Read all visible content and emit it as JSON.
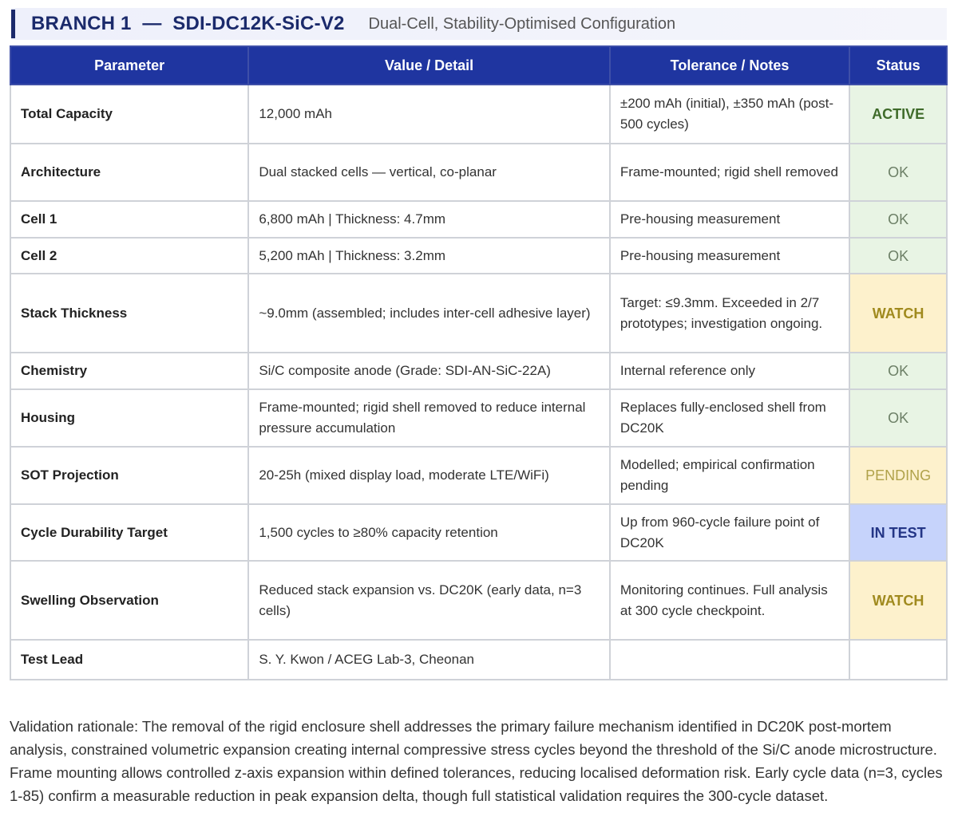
{
  "banner": {
    "title": "BRANCH 1  —  SDI-DC12K-SiC-V2",
    "subtitle": "Dual-Cell, Stability-Optimised Configuration"
  },
  "table": {
    "headers": [
      "Parameter",
      "Value / Detail",
      "Tolerance / Notes",
      "Status"
    ],
    "rows": [
      {
        "param": "Total Capacity",
        "value": "12,000 mAh",
        "notes": "±200 mAh (initial), ±350 mAh (post-500 cycles)",
        "status": "ACTIVE",
        "cls": "active",
        "h": 74
      },
      {
        "param": "Architecture",
        "value": "Dual stacked cells — vertical, co-planar",
        "notes": "Frame-mounted; rigid shell removed",
        "status": "OK",
        "cls": "ok",
        "h": 72
      },
      {
        "param": "Cell 1",
        "value": "6,800 mAh | Thickness: 4.7mm",
        "notes": "Pre-housing measurement",
        "status": "OK",
        "cls": "ok",
        "h": 46
      },
      {
        "param": "Cell 2",
        "value": "5,200 mAh | Thickness: 3.2mm",
        "notes": "Pre-housing measurement",
        "status": "OK",
        "cls": "ok",
        "h": 45
      },
      {
        "param": "Stack Thickness",
        "value": "~9.0mm (assembled; includes inter-cell adhesive layer)",
        "notes": "Target: ≤9.3mm. Exceeded in 2/7 prototypes; investigation ongoing.",
        "status": "WATCH",
        "cls": "watch",
        "h": 99
      },
      {
        "param": "Chemistry",
        "value": "Si/C composite anode (Grade: SDI-AN-SiC-22A)",
        "notes": "Internal reference only",
        "status": "OK",
        "cls": "ok",
        "h": 46
      },
      {
        "param": "Housing",
        "value": "Frame-mounted; rigid shell removed to reduce internal pressure accumulation",
        "notes": "Replaces fully-enclosed shell from DC20K",
        "status": "OK",
        "cls": "ok",
        "h": 72
      },
      {
        "param": "SOT Projection",
        "value": "20-25h (mixed display load, moderate LTE/WiFi)",
        "notes": "Modelled; empirical confirmation pending",
        "status": "PENDING",
        "cls": "pending",
        "h": 72
      },
      {
        "param": "Cycle Durability Target",
        "value": "1,500 cycles to ≥80% capacity retention",
        "notes": "Up from 960-cycle failure point of DC20K",
        "status": "IN TEST",
        "cls": "intest",
        "h": 71
      },
      {
        "param": "Swelling Observation",
        "value": "Reduced stack expansion vs. DC20K (early data, n=3 cells)",
        "notes": "Monitoring continues. Full analysis at 300 cycle checkpoint.",
        "status": "WATCH",
        "cls": "watch",
        "h": 99
      },
      {
        "param": "Test Lead",
        "value": "S. Y. Kwon / ACEG Lab-3, Cheonan",
        "notes": "",
        "status": "",
        "cls": "none",
        "h": 50
      }
    ]
  },
  "rationale": "Validation rationale: The removal of the rigid enclosure shell addresses the primary failure mechanism identified in DC20K post-mortem analysis, constrained volumetric expansion creating internal compressive stress cycles beyond the threshold of the Si/C anode microstructure. Frame mounting allows controlled z-axis expansion within defined tolerances, reducing localised deformation risk. Early cycle data (n=3, cycles 1-85) confirm a measurable reduction in peak expansion delta, though full statistical validation requires the 300-cycle dataset."
}
